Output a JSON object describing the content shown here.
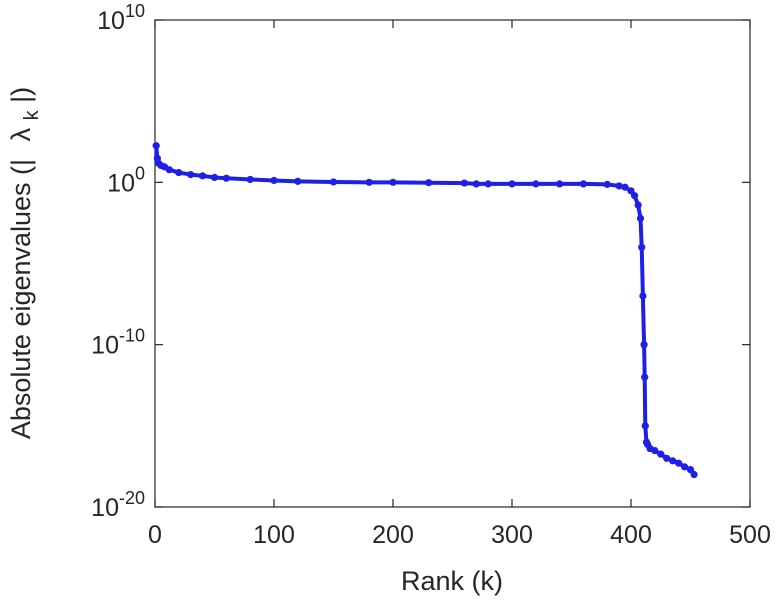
{
  "chart_data": {
    "type": "line",
    "xlabel": "Rank (k)",
    "ylabel": "Absolute eigenvalues (|λk|)",
    "ylabel_parts": {
      "prefix": "Absolute eigenvalues (|",
      "symbol": "λ",
      "subscript": "k",
      "suffix": "|)"
    },
    "xlim": [
      0,
      500
    ],
    "ylim_exp": [
      -20,
      10
    ],
    "yscale": "log",
    "grid": false,
    "x_ticks": [
      "0",
      "100",
      "200",
      "300",
      "400",
      "500"
    ],
    "y_ticks": [
      {
        "base": "10",
        "exp": "-20"
      },
      {
        "base": "10",
        "exp": "-10"
      },
      {
        "base": "10",
        "exp": "0"
      },
      {
        "base": "10",
        "exp": "10"
      }
    ],
    "series": [
      {
        "color": "#1f1fe6",
        "marker": "dot",
        "x": [
          1,
          2,
          3,
          5,
          8,
          12,
          20,
          30,
          40,
          50,
          60,
          80,
          100,
          120,
          150,
          180,
          200,
          230,
          260,
          270,
          280,
          300,
          320,
          340,
          360,
          380,
          390,
          395,
          400,
          403,
          406,
          408,
          409,
          410,
          411,
          411.5,
          412,
          413,
          414,
          416,
          420,
          425,
          430,
          435,
          440,
          445,
          450,
          453
        ],
        "y": [
          180.0,
          30.0,
          15.0,
          11.0,
          9.0,
          6.0,
          4.0,
          3.0,
          2.5,
          2.0,
          1.8,
          1.5,
          1.3,
          1.15,
          1.05,
          1.0,
          1.0,
          0.95,
          0.9,
          0.8,
          0.8,
          0.8,
          0.8,
          0.8,
          0.8,
          0.75,
          0.6,
          0.5,
          0.3,
          0.15,
          0.04,
          0.006,
          0.0001,
          1e-07,
          1e-10,
          1e-12,
          1e-15,
          1e-16,
          7e-17,
          4e-17,
          3e-17,
          1.8e-17,
          1e-17,
          7e-18,
          5e-18,
          3e-18,
          2e-18,
          1e-18
        ]
      }
    ]
  }
}
